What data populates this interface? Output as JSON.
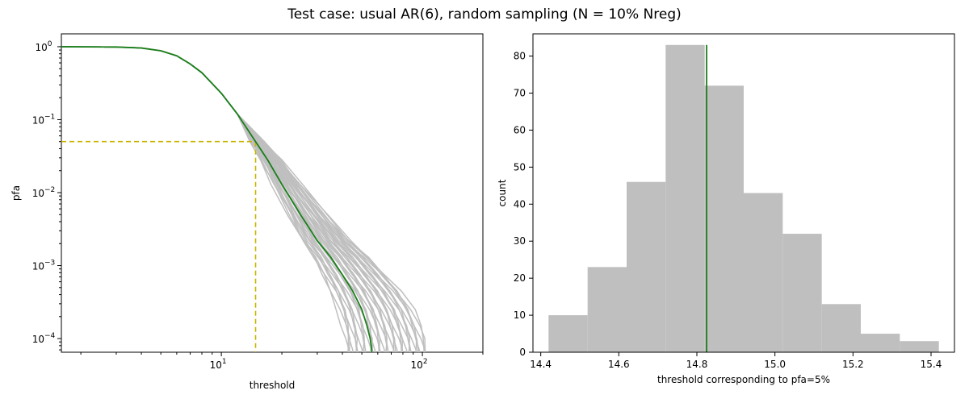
{
  "figure": {
    "title": "Test case: usual AR(6), random sampling (N = 10% Nreg)"
  },
  "chart_data": [
    {
      "type": "line",
      "xscale": "log",
      "yscale": "log",
      "xlabel": "threshold",
      "ylabel": "pfa",
      "xlim": [
        1.6,
        200
      ],
      "ylim": [
        6.5e-05,
        1.5
      ],
      "x_ticks": [
        {
          "value": 10,
          "base": "10",
          "exp": "1"
        },
        {
          "value": 100,
          "base": "10",
          "exp": "2"
        }
      ],
      "y_ticks": [
        {
          "value": 1,
          "base": "10",
          "exp": "0"
        },
        {
          "value": 0.1,
          "base": "10",
          "exp": "−1"
        },
        {
          "value": 0.01,
          "base": "10",
          "exp": "−2"
        },
        {
          "value": 0.001,
          "base": "10",
          "exp": "−3"
        },
        {
          "value": 0.0001,
          "base": "10",
          "exp": "−4"
        }
      ],
      "reference": {
        "pfa": 0.05,
        "threshold": 14.8,
        "color": "#c8b400"
      },
      "mean_curve": {
        "color": "#1a7f1a",
        "x": [
          1.6,
          3.0,
          4.0,
          5.0,
          6.0,
          7.0,
          8.0,
          10.0,
          12.0,
          14.8,
          17.0,
          20.0,
          25.0,
          30.0,
          35.0,
          40.0,
          45.0,
          50.0,
          53.0,
          55.0,
          56.0
        ],
        "y": [
          1.0,
          0.99,
          0.96,
          0.88,
          0.75,
          0.58,
          0.44,
          0.23,
          0.12,
          0.05,
          0.028,
          0.013,
          0.0048,
          0.0022,
          0.0013,
          0.00075,
          0.00045,
          0.00025,
          0.00015,
          0.0001,
          7e-05
        ]
      },
      "sample_curves": {
        "color": "#bfbfbf",
        "count": 40,
        "end_threshold_range": [
          42,
          105
        ]
      }
    },
    {
      "type": "bar",
      "histogram": true,
      "xlabel": "threshold corresponding to pfa=5%",
      "ylabel": "count",
      "xlim": [
        14.38,
        15.46
      ],
      "ylim": [
        0,
        86
      ],
      "x_ticks": [
        "14.4",
        "14.6",
        "14.8",
        "15.0",
        "15.2",
        "15.4"
      ],
      "y_ticks": [
        "0",
        "10",
        "20",
        "30",
        "40",
        "50",
        "60",
        "70",
        "80"
      ],
      "bar_color": "#bfbfbf",
      "bin_edges": [
        14.42,
        14.52,
        14.62,
        14.72,
        14.82,
        14.92,
        15.02,
        15.12,
        15.22,
        15.32,
        15.42
      ],
      "counts": [
        10,
        23,
        46,
        83,
        72,
        43,
        32,
        13,
        5,
        3
      ],
      "mean_line": {
        "x": 14.825,
        "top": 83,
        "color": "#1a7f1a"
      }
    }
  ]
}
